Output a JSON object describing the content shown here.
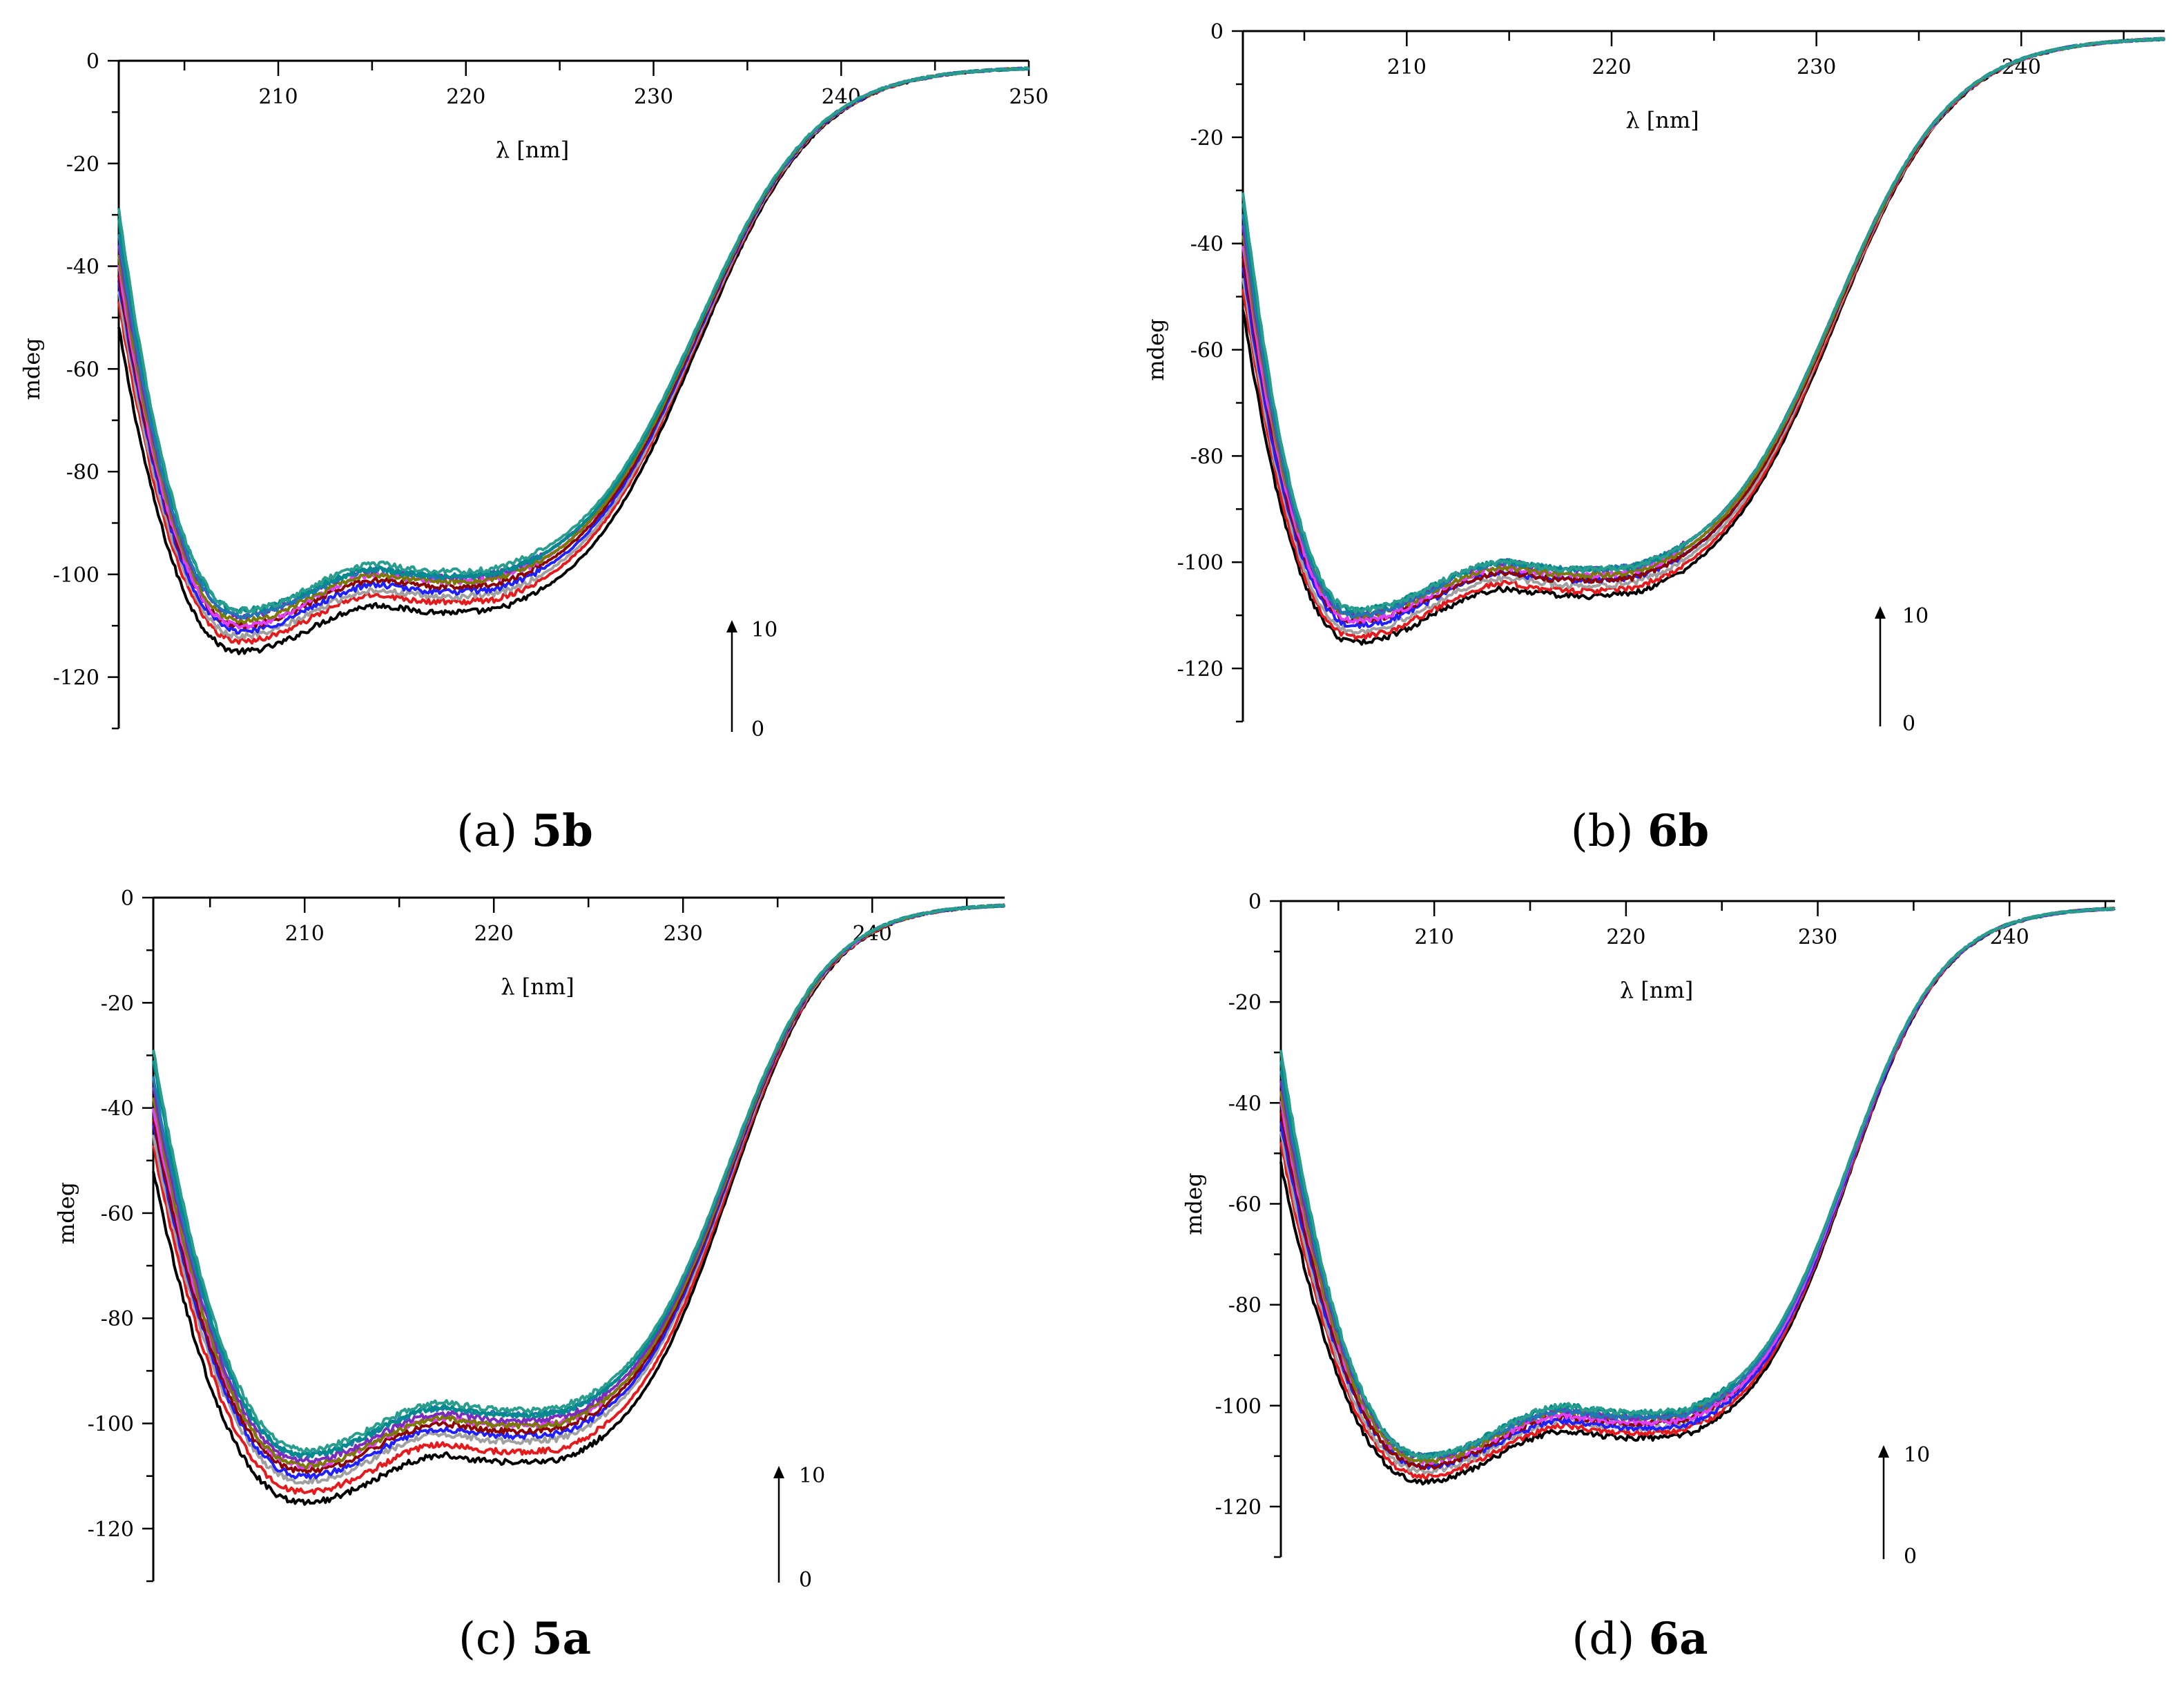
{
  "figure_captions": [
    "(a) 5b",
    "(b) 6b",
    "(c) 5a",
    "(d) 6a"
  ],
  "series_colors": [
    "#000000",
    "#e41a1c",
    "#a0a0a0",
    "#1f1fff",
    "#8b0000",
    "#e040fb",
    "#7a7a00",
    "#7b2cbf",
    "#1f77b4",
    "#008b8b",
    "#2a9d8f"
  ],
  "chart_data": [
    {
      "type": "line",
      "caption_prefix": "(a)",
      "caption_label": "5b",
      "xlabel": "λ [nm]",
      "ylabel": "mdeg",
      "xlim": [
        201.5,
        250
      ],
      "ylim": [
        -130,
        0
      ],
      "xticks": [
        210,
        220,
        230,
        240,
        250
      ],
      "xtick_labels": [
        "210",
        "220",
        "230",
        "240",
        "250"
      ],
      "yticks": [
        0,
        -20,
        -40,
        -60,
        -80,
        -100,
        -120
      ],
      "ytick_labels": [
        "0",
        "-20",
        "-40",
        "-60",
        "-80",
        "-100",
        "-120"
      ],
      "arrow": {
        "from": "0",
        "to": "10"
      },
      "min1_x": 208,
      "min1_depth": [
        -115,
        -113,
        -112,
        -111,
        -110,
        -110,
        -109,
        -108,
        -108,
        -107,
        -107
      ],
      "shoulder_depth": [
        -106,
        -104,
        -103,
        -102,
        -101,
        -100,
        -100,
        -99,
        -99,
        -99,
        -98
      ],
      "start_y": [
        -52,
        -47,
        -45,
        -43,
        -42,
        -40,
        -38,
        -36,
        -34,
        -31,
        -29
      ]
    },
    {
      "type": "line",
      "caption_prefix": "(b)",
      "caption_label": "6b",
      "xlabel": "λ [nm]",
      "ylabel": "mdeg",
      "xlim": [
        202,
        247
      ],
      "ylim": [
        -130,
        0
      ],
      "xticks": [
        210,
        220,
        230,
        240
      ],
      "xtick_labels": [
        "210",
        "220",
        "230",
        "240"
      ],
      "yticks": [
        0,
        -20,
        -40,
        -60,
        -80,
        -100,
        -120
      ],
      "ytick_labels": [
        "0",
        "-20",
        "-40",
        "-60",
        "-80",
        "-100",
        "-120"
      ],
      "arrow": {
        "from": "0",
        "to": "10"
      },
      "min1_x": 207.5,
      "min1_depth": [
        -115,
        -114,
        -113,
        -112,
        -111,
        -111,
        -110,
        -110,
        -110,
        -109,
        -109
      ],
      "shoulder_depth": [
        -105,
        -104,
        -103,
        -102,
        -102,
        -101,
        -101,
        -100,
        -100,
        -100,
        -100
      ],
      "start_y": [
        -52,
        -48,
        -46,
        -44,
        -42,
        -40,
        -38,
        -36,
        -34,
        -32,
        -30
      ]
    },
    {
      "type": "line",
      "caption_prefix": "(c)",
      "caption_label": "5a",
      "xlabel": "λ [nm]",
      "ylabel": "mdeg",
      "xlim": [
        202,
        247
      ],
      "ylim": [
        -130,
        0
      ],
      "xticks": [
        210,
        220,
        230,
        240
      ],
      "xtick_labels": [
        "210",
        "220",
        "230",
        "240"
      ],
      "yticks": [
        0,
        -20,
        -40,
        -60,
        -80,
        -100,
        -120
      ],
      "ytick_labels": [
        "0",
        "-20",
        "-40",
        "-60",
        "-80",
        "-100",
        "-120"
      ],
      "arrow": {
        "from": "0",
        "to": "10"
      },
      "min1_x": 210,
      "min1_depth": [
        -115,
        -113,
        -111,
        -110,
        -109,
        -108,
        -108,
        -107,
        -106,
        -106,
        -105
      ],
      "shoulder_depth": [
        -106,
        -104,
        -102,
        -101,
        -100,
        -99,
        -99,
        -98,
        -97,
        -97,
        -96
      ],
      "start_y": [
        -52,
        -47,
        -45,
        -43,
        -42,
        -40,
        -38,
        -36,
        -34,
        -31,
        -29
      ]
    },
    {
      "type": "line",
      "caption_prefix": "(d)",
      "caption_label": "6a",
      "xlabel": "λ [nm]",
      "ylabel": "mdeg",
      "xlim": [
        202,
        245.5
      ],
      "ylim": [
        -130,
        0
      ],
      "xticks": [
        210,
        220,
        230,
        240
      ],
      "xtick_labels": [
        "210",
        "220",
        "230",
        "240"
      ],
      "yticks": [
        0,
        -20,
        -40,
        -60,
        -80,
        -100,
        -120
      ],
      "ytick_labels": [
        "0",
        "-20",
        "-40",
        "-60",
        "-80",
        "-100",
        "-120"
      ],
      "arrow": {
        "from": "0",
        "to": "10"
      },
      "min1_x": 209.5,
      "min1_depth": [
        -115,
        -114,
        -113,
        -112,
        -112,
        -111,
        -111,
        -110,
        -110,
        -110,
        -110
      ],
      "shoulder_depth": [
        -105,
        -104,
        -103,
        -103,
        -102,
        -102,
        -101,
        -101,
        -101,
        -100,
        -100
      ],
      "start_y": [
        -52,
        -48,
        -46,
        -44,
        -42,
        -40,
        -38,
        -36,
        -34,
        -32,
        -30
      ]
    }
  ]
}
